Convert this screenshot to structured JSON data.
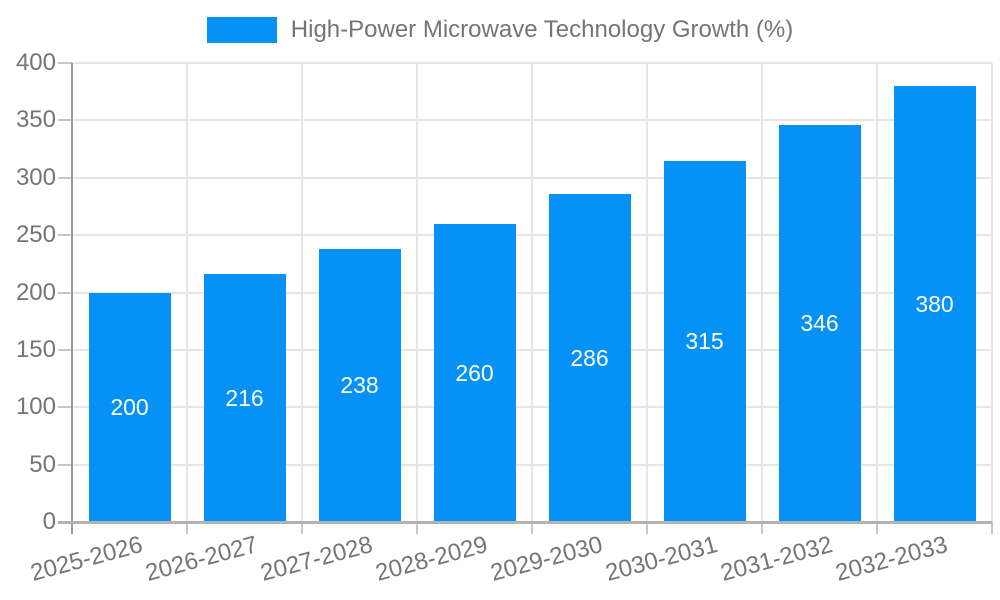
{
  "colors": {
    "bar": "#0591f5",
    "grid": "#e6e6e6",
    "axis_y": "#9a9a9a",
    "axis_x": "#b3b3b3",
    "tick": "#c6c6c6",
    "text": "#757575",
    "bar_label": "#ffffff",
    "background": "#ffffff"
  },
  "legend": {
    "label": "High-Power Microwave Technology Growth (%)"
  },
  "chart_data": {
    "type": "bar",
    "title": "High-Power Microwave Technology Growth (%)",
    "categories": [
      "2025-2026",
      "2026-2027",
      "2027-2028",
      "2028-2029",
      "2029-2030",
      "2030-2031",
      "2031-2032",
      "2032-2033"
    ],
    "values": [
      200,
      216,
      238,
      260,
      286,
      315,
      346,
      380
    ],
    "bar_labels": [
      "200",
      "216",
      "238",
      "260",
      "286",
      "315",
      "346",
      "380"
    ],
    "xlabel": "",
    "ylabel": "",
    "ylim": [
      0,
      400
    ],
    "ytick_step": 50,
    "yticks": [
      "0",
      "50",
      "100",
      "150",
      "200",
      "250",
      "300",
      "350",
      "400"
    ],
    "grid": true,
    "legend_position": "top",
    "bar_value_labels_visible": true,
    "x_label_rotation_deg": -15
  }
}
